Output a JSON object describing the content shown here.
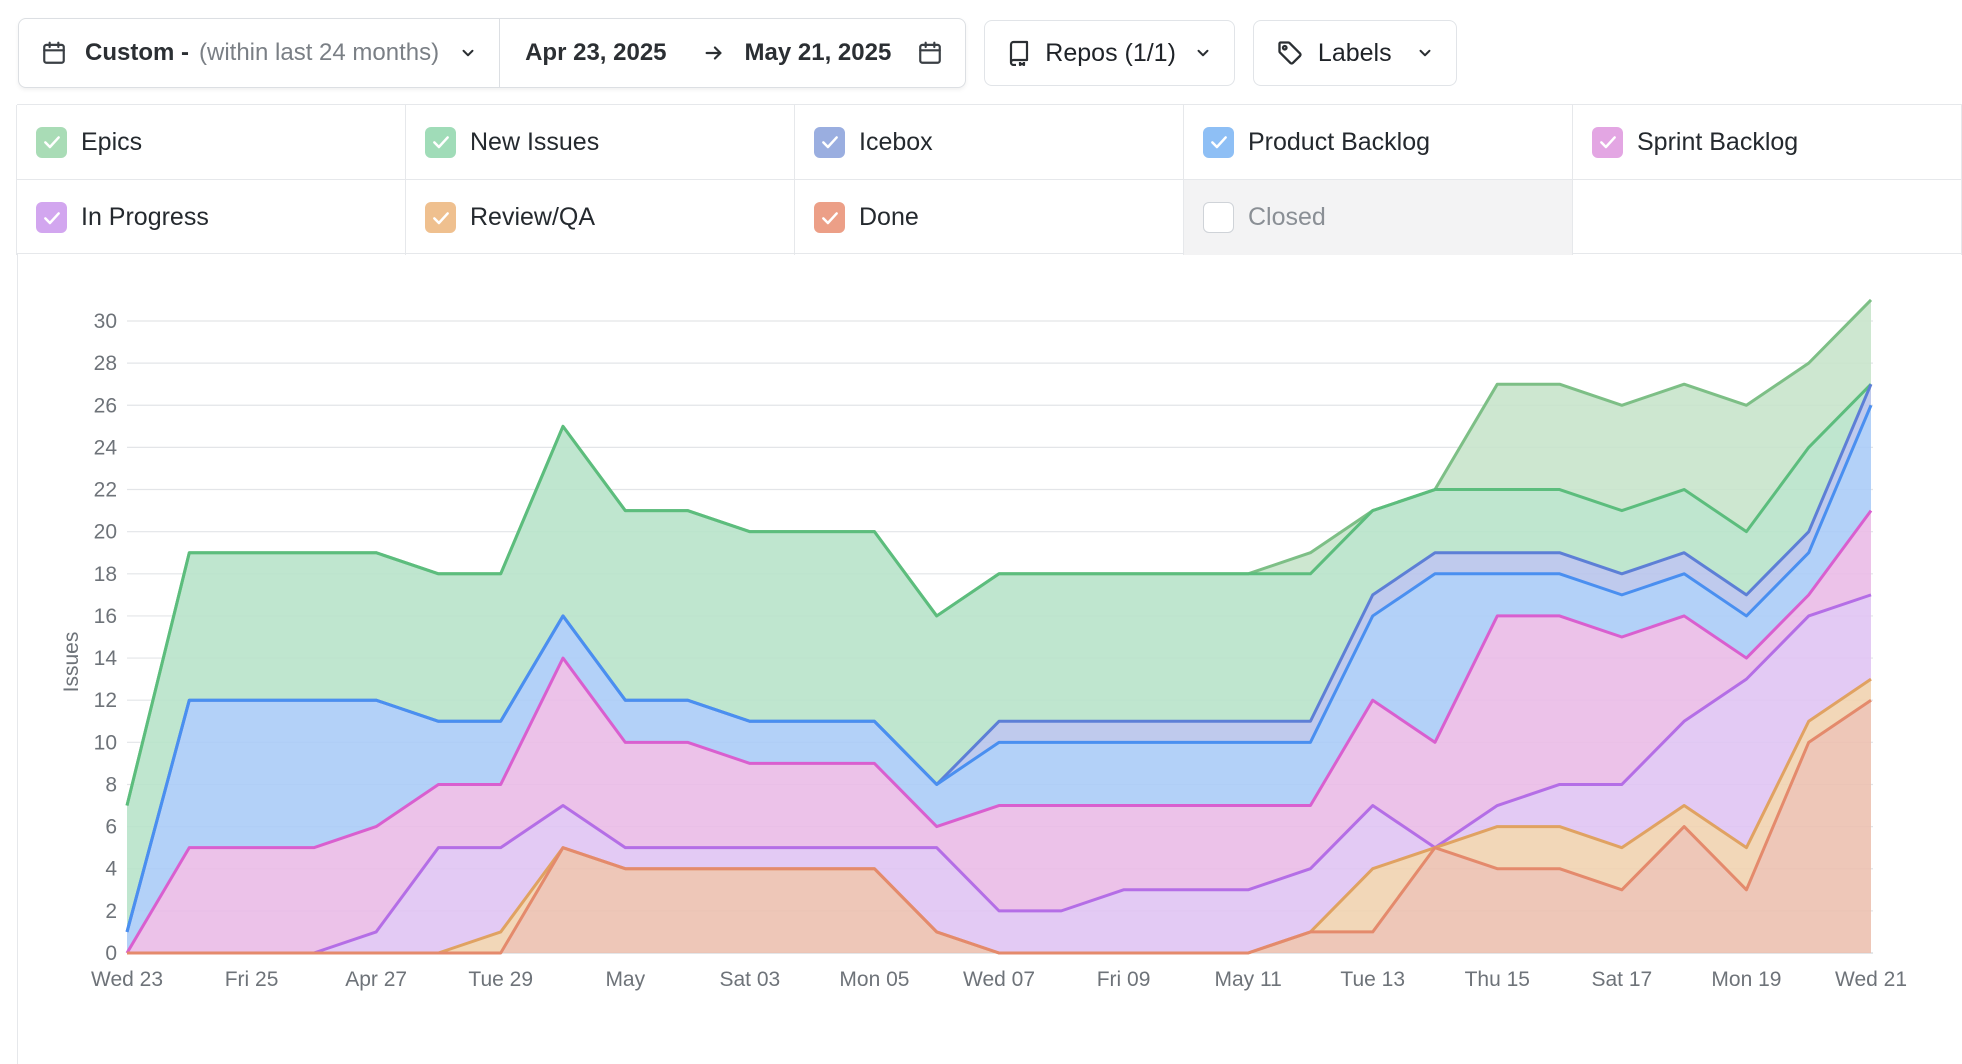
{
  "toolbar": {
    "range_label": "Custom -",
    "range_hint": "(within last 24 months)",
    "start_date": "Apr 23, 2025",
    "end_date": "May 21, 2025",
    "repos_label": "Repos (1/1)",
    "labels_label": "Labels"
  },
  "legend": [
    {
      "label": "Epics",
      "color": "#a9dcb6",
      "checked": true
    },
    {
      "label": "New Issues",
      "color": "#a0dcb8",
      "checked": true
    },
    {
      "label": "Icebox",
      "color": "#9aaee0",
      "checked": true
    },
    {
      "label": "Product Backlog",
      "color": "#8ebff5",
      "checked": true
    },
    {
      "label": "Sprint Backlog",
      "color": "#e3a6e3",
      "checked": true
    },
    {
      "label": "In Progress",
      "color": "#d2a6ef",
      "checked": true
    },
    {
      "label": "Review/QA",
      "color": "#efc08f",
      "checked": true
    },
    {
      "label": "Done",
      "color": "#ec9f87",
      "checked": true
    },
    {
      "label": "Closed",
      "color": "#ffffff",
      "checked": false
    }
  ],
  "chart_data": {
    "type": "area",
    "stacked": true,
    "ylabel": "Issues",
    "xlabel": "",
    "ylim": [
      0,
      30
    ],
    "yticks": [
      0,
      2,
      4,
      6,
      8,
      10,
      12,
      14,
      16,
      18,
      20,
      22,
      24,
      26,
      28,
      30
    ],
    "x": [
      "2025-04-23",
      "2025-04-24",
      "2025-04-25",
      "2025-04-26",
      "2025-04-27",
      "2025-04-28",
      "2025-04-29",
      "2025-04-30",
      "2025-05-01",
      "2025-05-02",
      "2025-05-03",
      "2025-05-04",
      "2025-05-05",
      "2025-05-06",
      "2025-05-07",
      "2025-05-08",
      "2025-05-09",
      "2025-05-10",
      "2025-05-11",
      "2025-05-12",
      "2025-05-13",
      "2025-05-14",
      "2025-05-15",
      "2025-05-16",
      "2025-05-17",
      "2025-05-18",
      "2025-05-19",
      "2025-05-20",
      "2025-05-21"
    ],
    "xtick_labels": [
      "Wed 23",
      "Fri 25",
      "Apr 27",
      "Tue 29",
      "May",
      "Sat 03",
      "Mon 05",
      "Wed 07",
      "Fri 09",
      "May 11",
      "Tue 13",
      "Thu 15",
      "Sat 17",
      "Mon 19",
      "Wed 21"
    ],
    "series": [
      {
        "name": "Done",
        "color": "#e48a6c",
        "fill": "#ecbfae",
        "values": [
          0,
          0,
          0,
          0,
          0,
          0,
          0,
          5,
          4,
          4,
          4,
          4,
          4,
          1,
          0,
          0,
          0,
          0,
          0,
          1,
          1,
          5,
          4,
          4,
          3,
          6,
          3,
          10,
          12
        ]
      },
      {
        "name": "Review/QA",
        "color": "#e0a262",
        "fill": "#f0d2ae",
        "values": [
          0,
          0,
          0,
          0,
          0,
          0,
          1,
          0,
          0,
          0,
          0,
          0,
          0,
          0,
          0,
          0,
          0,
          0,
          0,
          0,
          3,
          0,
          2,
          2,
          2,
          1,
          2,
          1,
          1
        ]
      },
      {
        "name": "In Progress",
        "color": "#b46ee6",
        "fill": "#dfc3f2",
        "values": [
          0,
          0,
          0,
          0,
          1,
          5,
          4,
          2,
          1,
          1,
          1,
          1,
          1,
          4,
          2,
          2,
          3,
          3,
          3,
          3,
          3,
          0,
          1,
          2,
          3,
          4,
          8,
          5,
          4
        ]
      },
      {
        "name": "Sprint Backlog",
        "color": "#d95fcf",
        "fill": "#e9b9e6",
        "values": [
          0,
          5,
          5,
          5,
          5,
          3,
          3,
          7,
          5,
          5,
          4,
          4,
          4,
          1,
          5,
          5,
          4,
          4,
          4,
          3,
          5,
          5,
          9,
          8,
          7,
          5,
          1,
          1,
          4
        ]
      },
      {
        "name": "Product Backlog",
        "color": "#4a8ff0",
        "fill": "#a9cbf7",
        "values": [
          1,
          7,
          7,
          7,
          6,
          3,
          3,
          2,
          2,
          2,
          2,
          2,
          2,
          2,
          3,
          3,
          3,
          3,
          3,
          3,
          4,
          8,
          2,
          2,
          2,
          2,
          2,
          2,
          5
        ]
      },
      {
        "name": "Icebox",
        "color": "#5d7fd6",
        "fill": "#b6c3ea",
        "values": [
          0,
          0,
          0,
          0,
          0,
          0,
          0,
          0,
          0,
          0,
          0,
          0,
          0,
          0,
          1,
          1,
          1,
          1,
          1,
          1,
          1,
          1,
          1,
          1,
          1,
          1,
          1,
          1,
          1
        ]
      },
      {
        "name": "New Issues",
        "color": "#5cbd7d",
        "fill": "#b6e2c8",
        "values": [
          6,
          7,
          7,
          7,
          7,
          7,
          7,
          9,
          9,
          9,
          9,
          9,
          9,
          8,
          7,
          7,
          7,
          7,
          7,
          7,
          4,
          3,
          3,
          3,
          3,
          3,
          3,
          4,
          0
        ]
      },
      {
        "name": "Epics",
        "color": "#7dbf86",
        "fill": "#c6e4c9",
        "values": [
          0,
          0,
          0,
          0,
          0,
          0,
          0,
          0,
          0,
          0,
          0,
          0,
          0,
          0,
          0,
          0,
          0,
          0,
          0,
          1,
          0,
          0,
          5,
          5,
          5,
          5,
          6,
          4,
          4
        ]
      }
    ]
  }
}
